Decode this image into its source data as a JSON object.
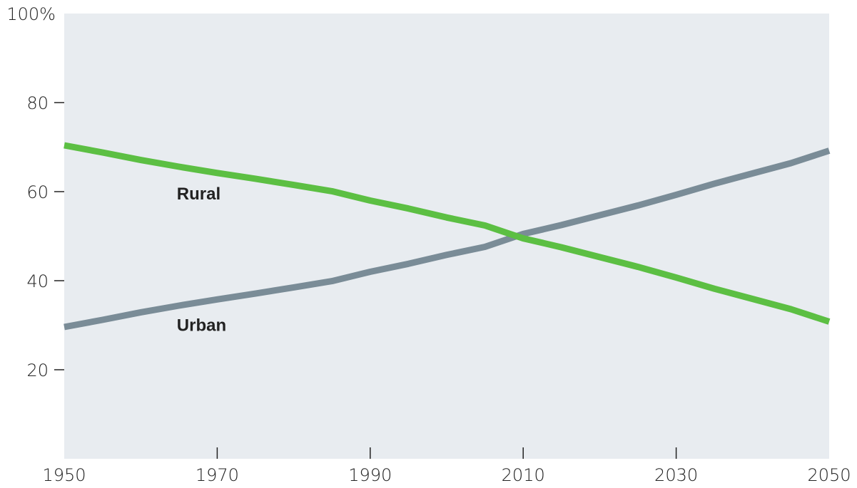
{
  "chart_data": {
    "type": "line",
    "title": "",
    "xlabel": "",
    "ylabel": "",
    "xlim": [
      1950,
      2050
    ],
    "ylim": [
      0,
      100
    ],
    "x_ticks": [
      1950,
      1970,
      1990,
      2010,
      2030,
      2050
    ],
    "x_tick_labels": [
      "1950",
      "1970",
      "1990",
      "2010",
      "2030",
      "2050"
    ],
    "y_ticks": [
      20,
      40,
      60,
      80,
      100
    ],
    "y_tick_labels": [
      "20",
      "40",
      "60",
      "80",
      "100%"
    ],
    "grid": false,
    "x": [
      1950,
      1955,
      1960,
      1965,
      1970,
      1975,
      1980,
      1985,
      1990,
      1995,
      2000,
      2005,
      2010,
      2015,
      2020,
      2025,
      2030,
      2035,
      2040,
      2045,
      2050
    ],
    "series": [
      {
        "name": "Rural",
        "color": "#5cbf43",
        "values": [
          70.4,
          68.8,
          67.1,
          65.6,
          64.2,
          62.9,
          61.5,
          60.1,
          58.0,
          56.2,
          54.2,
          52.4,
          49.5,
          47.5,
          45.3,
          43.1,
          40.7,
          38.2,
          35.9,
          33.6,
          30.8
        ],
        "label_at": [
          1965,
          59.5
        ]
      },
      {
        "name": "Urban",
        "color": "#7a8c97",
        "values": [
          29.6,
          31.2,
          32.9,
          34.4,
          35.8,
          37.1,
          38.5,
          39.9,
          42.0,
          43.8,
          45.8,
          47.6,
          50.5,
          52.5,
          54.7,
          56.9,
          59.3,
          61.8,
          64.1,
          66.4,
          69.2
        ],
        "label_at": [
          1965,
          30
        ]
      }
    ],
    "colors": {
      "background": "#e8ecf0",
      "axis": "#222222"
    }
  }
}
